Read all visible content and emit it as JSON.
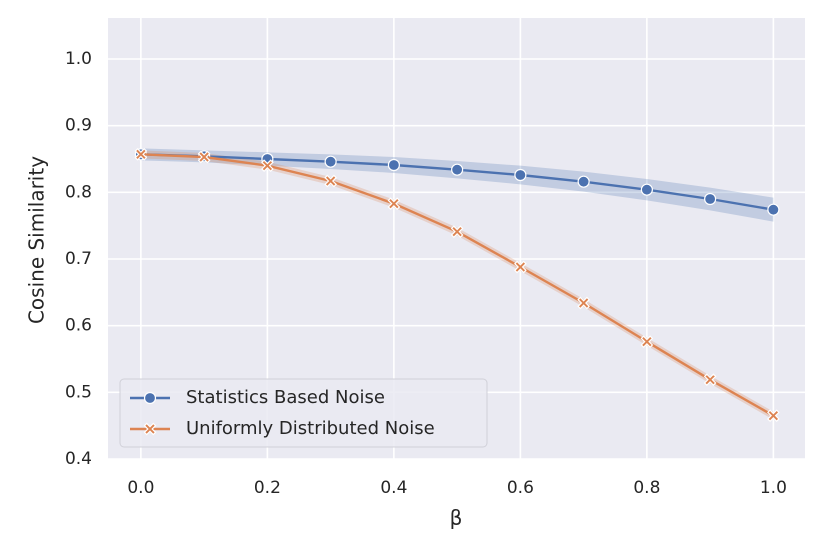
{
  "chart_data": {
    "type": "line",
    "x_label": "β",
    "y_label": "Cosine Similarity",
    "x": [
      0,
      0.1,
      0.2,
      0.3,
      0.4,
      0.5,
      0.6,
      0.7,
      0.8,
      0.9,
      1.0
    ],
    "series": [
      {
        "name": "Statistics Based Noise",
        "color": "#4c72b0",
        "marker": "circle",
        "values": [
          0.857,
          0.854,
          0.85,
          0.846,
          0.841,
          0.834,
          0.826,
          0.816,
          0.804,
          0.79,
          0.774
        ],
        "ci_lower": [
          0.848,
          0.845,
          0.84,
          0.835,
          0.829,
          0.821,
          0.812,
          0.801,
          0.788,
          0.773,
          0.756
        ],
        "ci_upper": [
          0.866,
          0.863,
          0.86,
          0.857,
          0.853,
          0.847,
          0.84,
          0.831,
          0.82,
          0.807,
          0.792
        ]
      },
      {
        "name": "Uniformly Distributed Noise",
        "color": "#dd8452",
        "marker": "x",
        "values": [
          0.857,
          0.853,
          0.84,
          0.817,
          0.783,
          0.741,
          0.688,
          0.634,
          0.576,
          0.519,
          0.465
        ],
        "ci_lower": [
          0.851,
          0.847,
          0.834,
          0.811,
          0.777,
          0.735,
          0.682,
          0.628,
          0.57,
          0.513,
          0.459
        ],
        "ci_upper": [
          0.863,
          0.859,
          0.846,
          0.823,
          0.789,
          0.747,
          0.694,
          0.64,
          0.582,
          0.525,
          0.471
        ]
      }
    ],
    "xlim": [
      -0.052,
      1.05
    ],
    "ylim": [
      0.4,
      1.0615
    ],
    "xticks": [
      {
        "value": 0,
        "label": "0.0"
      },
      0.2,
      0.4,
      0.6,
      0.8,
      {
        "value": 1,
        "label": "1.0"
      }
    ],
    "yticks": [
      0.4,
      0.5,
      0.6,
      0.7,
      0.8,
      0.9,
      {
        "value": 1,
        "label": "1.0"
      }
    ],
    "grid": true,
    "legend": "lower left"
  }
}
